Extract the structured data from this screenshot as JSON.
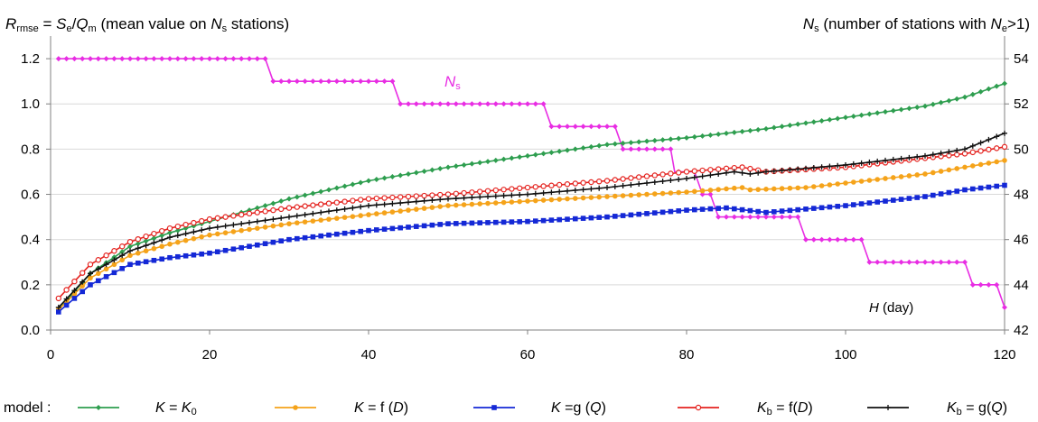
{
  "chart_data": {
    "type": "line",
    "titles": {
      "left": {
        "base": "R",
        "sub": "rmse",
        "rest": " = ",
        "base2": "S",
        "sub2": "e",
        "rest2": "/",
        "base3": "Q",
        "sub3": "m",
        "rest3": " (mean value on ",
        "base4": "N",
        "sub4": "s",
        "rest4": " stations)"
      },
      "right": {
        "base": "N",
        "sub": "s",
        "rest": " (number of stations with ",
        "base2": "N",
        "sub2": "e",
        "rest2": ">1)"
      }
    },
    "annotations": {
      "ns_label": {
        "base": "N",
        "sub": "s"
      },
      "h_label": {
        "base": "H",
        "rest": "  (day)"
      }
    },
    "x": {
      "ticks": [
        0,
        20,
        40,
        60,
        80,
        100,
        120
      ],
      "range": [
        0,
        120
      ]
    },
    "y_left": {
      "ticks": [
        "0.0",
        "0.2",
        "0.4",
        "0.6",
        "0.8",
        "1.0",
        "1.2"
      ],
      "range": [
        0,
        1.3
      ]
    },
    "y_right": {
      "ticks": [
        42,
        44,
        46,
        48,
        50,
        52,
        54
      ],
      "range": [
        42,
        55
      ]
    },
    "grid": "horizontal",
    "series": [
      {
        "key": "K0",
        "color": "#2e9e4f",
        "marker": "diamond",
        "axis": "left",
        "points": [
          [
            1,
            0.09
          ],
          [
            5,
            0.25
          ],
          [
            10,
            0.37
          ],
          [
            15,
            0.43
          ],
          [
            20,
            0.48
          ],
          [
            30,
            0.58
          ],
          [
            40,
            0.66
          ],
          [
            50,
            0.72
          ],
          [
            60,
            0.77
          ],
          [
            70,
            0.82
          ],
          [
            80,
            0.85
          ],
          [
            90,
            0.89
          ],
          [
            100,
            0.94
          ],
          [
            110,
            0.99
          ],
          [
            115,
            1.03
          ],
          [
            120,
            1.09
          ]
        ]
      },
      {
        "key": "fD",
        "color": "#f5a31a",
        "marker": "circle",
        "axis": "left",
        "points": [
          [
            1,
            0.09
          ],
          [
            5,
            0.23
          ],
          [
            10,
            0.33
          ],
          [
            15,
            0.38
          ],
          [
            20,
            0.42
          ],
          [
            30,
            0.47
          ],
          [
            40,
            0.51
          ],
          [
            50,
            0.55
          ],
          [
            60,
            0.57
          ],
          [
            70,
            0.59
          ],
          [
            80,
            0.61
          ],
          [
            87,
            0.63
          ],
          [
            88,
            0.62
          ],
          [
            95,
            0.63
          ],
          [
            100,
            0.65
          ],
          [
            110,
            0.69
          ],
          [
            115,
            0.72
          ],
          [
            120,
            0.75
          ]
        ]
      },
      {
        "key": "gQ",
        "color": "#1428d6",
        "marker": "square",
        "axis": "left",
        "points": [
          [
            1,
            0.08
          ],
          [
            5,
            0.2
          ],
          [
            10,
            0.29
          ],
          [
            15,
            0.32
          ],
          [
            20,
            0.34
          ],
          [
            30,
            0.4
          ],
          [
            40,
            0.44
          ],
          [
            50,
            0.47
          ],
          [
            60,
            0.48
          ],
          [
            70,
            0.5
          ],
          [
            80,
            0.53
          ],
          [
            85,
            0.54
          ],
          [
            90,
            0.52
          ],
          [
            100,
            0.55
          ],
          [
            110,
            0.59
          ],
          [
            115,
            0.62
          ],
          [
            120,
            0.64
          ]
        ]
      },
      {
        "key": "fbD",
        "color": "#e4231f",
        "marker": "circle-open",
        "axis": "left",
        "points": [
          [
            1,
            0.14
          ],
          [
            5,
            0.29
          ],
          [
            10,
            0.39
          ],
          [
            15,
            0.45
          ],
          [
            20,
            0.49
          ],
          [
            30,
            0.54
          ],
          [
            40,
            0.58
          ],
          [
            50,
            0.6
          ],
          [
            60,
            0.63
          ],
          [
            70,
            0.66
          ],
          [
            80,
            0.7
          ],
          [
            87,
            0.72
          ],
          [
            90,
            0.7
          ],
          [
            100,
            0.72
          ],
          [
            110,
            0.76
          ],
          [
            115,
            0.78
          ],
          [
            120,
            0.81
          ]
        ]
      },
      {
        "key": "gbQ",
        "color": "#111111",
        "marker": "plus",
        "axis": "left",
        "points": [
          [
            1,
            0.1
          ],
          [
            5,
            0.25
          ],
          [
            10,
            0.35
          ],
          [
            15,
            0.41
          ],
          [
            20,
            0.45
          ],
          [
            30,
            0.5
          ],
          [
            40,
            0.55
          ],
          [
            50,
            0.58
          ],
          [
            60,
            0.6
          ],
          [
            70,
            0.63
          ],
          [
            80,
            0.67
          ],
          [
            86,
            0.7
          ],
          [
            88,
            0.69
          ],
          [
            90,
            0.7
          ],
          [
            100,
            0.73
          ],
          [
            110,
            0.77
          ],
          [
            115,
            0.8
          ],
          [
            120,
            0.87
          ]
        ]
      },
      {
        "key": "Ns",
        "color": "#e82de3",
        "marker": "diamond",
        "axis": "right",
        "points": [
          [
            1,
            54
          ],
          [
            27,
            54
          ],
          [
            28,
            53
          ],
          [
            43,
            53
          ],
          [
            44,
            52
          ],
          [
            62,
            52
          ],
          [
            63,
            51
          ],
          [
            71,
            51
          ],
          [
            72,
            50
          ],
          [
            78,
            50
          ],
          [
            78.5,
            49
          ],
          [
            81,
            49
          ],
          [
            82,
            48
          ],
          [
            83,
            48
          ],
          [
            84,
            47
          ],
          [
            94,
            47
          ],
          [
            95,
            46
          ],
          [
            102,
            46
          ],
          [
            103,
            45
          ],
          [
            115,
            45
          ],
          [
            116,
            44
          ],
          [
            119,
            44
          ],
          [
            120,
            43
          ]
        ]
      }
    ],
    "legend": {
      "position": "bottom",
      "prefix": "model :",
      "items": [
        {
          "series": "K0",
          "base": "K",
          "rest": " = ",
          "base2": "K",
          "sub2": "0"
        },
        {
          "series": "fD",
          "base": "K",
          "rest": " = f (",
          "base2": "D",
          "rest2": ")"
        },
        {
          "series": "gQ",
          "base": "K",
          "rest": " =g (",
          "base2": "Q",
          "rest2": ")"
        },
        {
          "series": "fbD",
          "base": "K",
          "rest": " = f",
          "sub": "b",
          "rest1": "(",
          "base2": "D",
          "rest2": ")"
        },
        {
          "series": "gbQ",
          "base": "K",
          "rest": " = g",
          "sub": "b",
          "rest1": "(",
          "base2": "Q",
          "rest2": ")"
        }
      ]
    }
  }
}
